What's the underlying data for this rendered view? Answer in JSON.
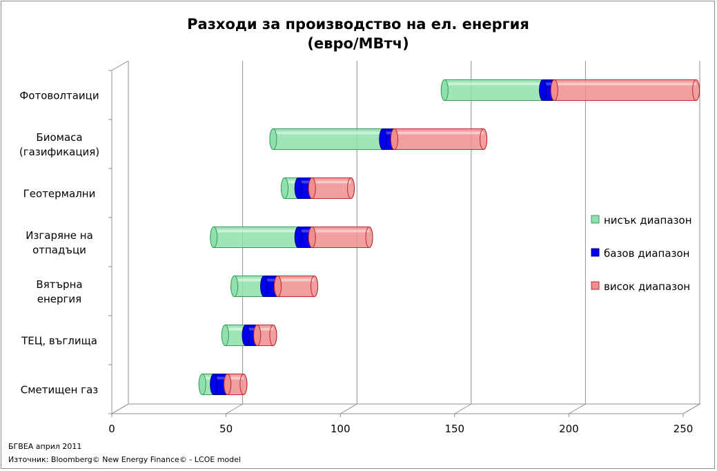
{
  "footnotes": {
    "line1": "БГВЕА април 2011",
    "line2": "Източник: Bloomberg© New Energy Finance© - LCOE model"
  },
  "chart_data": {
    "type": "bar",
    "orientation": "horizontal",
    "stacked": true,
    "style": "3d-cylinder",
    "title_lines": [
      "Разходи за производство на ел. енергия",
      "(евро/MВтч)"
    ],
    "xlim": [
      0,
      250
    ],
    "xticks": [
      0,
      50,
      100,
      150,
      200,
      250
    ],
    "grid": true,
    "legend_position": "right",
    "categories": [
      [
        "Фотоволтаици"
      ],
      [
        "Биомаса",
        "(газификация)"
      ],
      [
        "Геотермални"
      ],
      [
        "Изгаряне на",
        "отпадъци"
      ],
      [
        "Вятърна",
        "енергия"
      ],
      [
        "ТЕЦ, въглища"
      ],
      [
        "Сметищен газ"
      ]
    ],
    "series": [
      {
        "name": "нисък диапазон",
        "color": "#8fe0ac",
        "edge": "#2f9e55",
        "ranges": [
          [
            142,
            185
          ],
          [
            67,
            115
          ],
          [
            72,
            78
          ],
          [
            41,
            78
          ],
          [
            50,
            63
          ],
          [
            46,
            55
          ],
          [
            36,
            41
          ]
        ]
      },
      {
        "name": "базов диапазон",
        "color": "#0000ee",
        "edge": "#00008a",
        "ranges": [
          [
            185,
            190
          ],
          [
            115,
            120
          ],
          [
            78,
            84
          ],
          [
            78,
            84
          ],
          [
            63,
            69
          ],
          [
            55,
            60
          ],
          [
            41,
            47
          ]
        ]
      },
      {
        "name": "висок диапазон",
        "color": "#ef8e8e",
        "edge": "#c0282d",
        "ranges": [
          [
            190,
            252
          ],
          [
            120,
            159
          ],
          [
            84,
            101
          ],
          [
            84,
            109
          ],
          [
            69,
            85
          ],
          [
            60,
            67
          ],
          [
            47,
            54
          ]
        ]
      }
    ]
  }
}
